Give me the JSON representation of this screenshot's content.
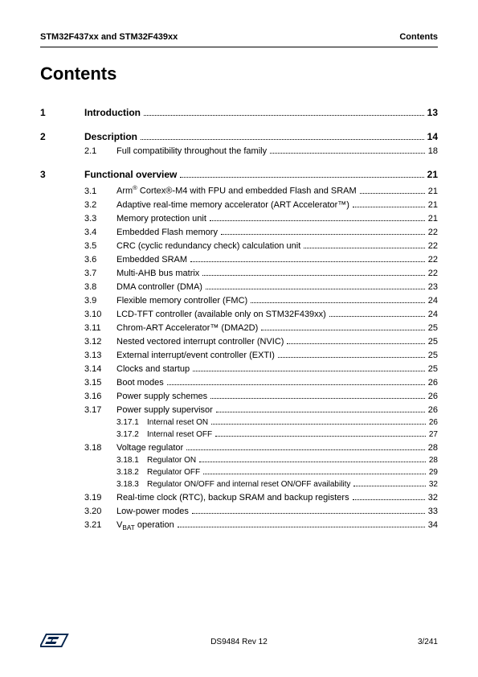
{
  "header": {
    "left": "STM32F437xx and STM32F439xx",
    "right": "Contents"
  },
  "title": "Contents",
  "sections": [
    {
      "num": "1",
      "label": "Introduction",
      "page": "13",
      "subs": []
    },
    {
      "num": "2",
      "label": "Description",
      "page": "14",
      "subs": [
        {
          "num": "2.1",
          "label": "Full compatibility throughout the family",
          "page": "18"
        }
      ]
    },
    {
      "num": "3",
      "label": "Functional overview",
      "page": "21",
      "subs": [
        {
          "num": "3.1",
          "label_html": "Arm<sup>®</sup> Cortex®-M4 with FPU and embedded Flash and SRAM",
          "page": "21"
        },
        {
          "num": "3.2",
          "label": "Adaptive real-time memory accelerator (ART Accelerator™)",
          "page": "21"
        },
        {
          "num": "3.3",
          "label": "Memory protection unit",
          "page": "21"
        },
        {
          "num": "3.4",
          "label": "Embedded Flash memory",
          "page": "22"
        },
        {
          "num": "3.5",
          "label": "CRC (cyclic redundancy check) calculation unit",
          "page": "22"
        },
        {
          "num": "3.6",
          "label": "Embedded SRAM",
          "page": "22"
        },
        {
          "num": "3.7",
          "label": "Multi-AHB bus matrix",
          "page": "22"
        },
        {
          "num": "3.8",
          "label": "DMA controller (DMA)",
          "page": "23"
        },
        {
          "num": "3.9",
          "label": "Flexible memory controller (FMC)",
          "page": "24"
        },
        {
          "num": "3.10",
          "label": "LCD-TFT controller (available only on STM32F439xx)",
          "page": "24"
        },
        {
          "num": "3.11",
          "label": "Chrom-ART Accelerator™ (DMA2D)",
          "page": "25"
        },
        {
          "num": "3.12",
          "label": "Nested vectored interrupt controller (NVIC)",
          "page": "25"
        },
        {
          "num": "3.13",
          "label": "External interrupt/event controller (EXTI)",
          "page": "25"
        },
        {
          "num": "3.14",
          "label": "Clocks and startup",
          "page": "25"
        },
        {
          "num": "3.15",
          "label": "Boot modes",
          "page": "26"
        },
        {
          "num": "3.16",
          "label": "Power supply schemes",
          "page": "26"
        },
        {
          "num": "3.17",
          "label": "Power supply supervisor",
          "page": "26",
          "subsubs": [
            {
              "num": "3.17.1",
              "label": "Internal reset ON",
              "page": "26"
            },
            {
              "num": "3.17.2",
              "label": "Internal reset OFF",
              "page": "27"
            }
          ]
        },
        {
          "num": "3.18",
          "label": "Voltage regulator",
          "page": "28",
          "subsubs": [
            {
              "num": "3.18.1",
              "label": "Regulator ON",
              "page": "28"
            },
            {
              "num": "3.18.2",
              "label": "Regulator OFF",
              "page": "29"
            },
            {
              "num": "3.18.3",
              "label": "Regulator ON/OFF and internal reset ON/OFF availability",
              "page": "32"
            }
          ]
        },
        {
          "num": "3.19",
          "label": "Real-time clock (RTC), backup SRAM and backup registers",
          "page": "32"
        },
        {
          "num": "3.20",
          "label": "Low-power modes",
          "page": "33"
        },
        {
          "num": "3.21",
          "label_html": "V<sub>BAT</sub> operation",
          "page": "34"
        }
      ]
    }
  ],
  "footer": {
    "center": "DS9484 Rev 12",
    "right": "3/241"
  },
  "logo_color": "#03234b"
}
